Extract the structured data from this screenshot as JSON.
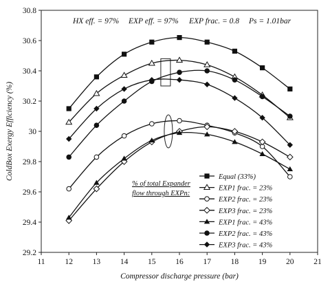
{
  "chart_data": {
    "type": "line",
    "params_text": [
      "HX eff. = 97%",
      "EXP eff. = 97%",
      "EXP frac. = 0.8",
      "Ps = 1.01bar"
    ],
    "xlabel": "Compressor discharge pressure (bar)",
    "ylabel": "ColdBox Exergy Efficiency (%)",
    "xlim": [
      11,
      21
    ],
    "ylim": [
      29.2,
      30.8
    ],
    "x_ticks": [
      "11",
      "12",
      "13",
      "14",
      "15",
      "16",
      "17",
      "18",
      "19",
      "20",
      "21"
    ],
    "y_ticks": [
      "29.2",
      "29.4",
      "29.6",
      "29.8",
      "30",
      "30.2",
      "30.4",
      "30.6",
      "30.8"
    ],
    "grid": false,
    "legend_position": "bottom-right",
    "note": [
      "% of total Expander",
      "flow through EXPn:"
    ],
    "x": [
      12,
      13,
      14,
      15,
      16,
      17,
      18,
      19,
      20
    ],
    "series": [
      {
        "name": "Equal (33%)",
        "marker": "square",
        "values": [
          30.15,
          30.36,
          30.51,
          30.59,
          30.62,
          30.59,
          30.53,
          30.42,
          30.28
        ]
      },
      {
        "name": "EXP1 frac. = 23%",
        "marker": "triangle-open",
        "values": [
          30.06,
          30.25,
          30.37,
          30.45,
          30.47,
          30.44,
          30.36,
          30.24,
          30.09
        ]
      },
      {
        "name": "EXP2 frac. = 23%",
        "marker": "circle-open",
        "values": [
          29.62,
          29.83,
          29.97,
          30.05,
          30.07,
          30.04,
          29.99,
          29.9,
          29.7
        ]
      },
      {
        "name": "EXP3 frac. = 23%",
        "marker": "diamond-open",
        "values": [
          29.41,
          29.62,
          29.8,
          29.93,
          30.0,
          30.03,
          30.0,
          29.93,
          29.83
        ]
      },
      {
        "name": "EXP1 frac. = 43%",
        "marker": "triangle",
        "values": [
          29.43,
          29.66,
          29.82,
          29.94,
          29.99,
          29.98,
          29.93,
          29.85,
          29.75
        ]
      },
      {
        "name": "EXP2 frac. = 43%",
        "marker": "circle",
        "values": [
          29.83,
          30.04,
          30.2,
          30.33,
          30.39,
          30.4,
          30.34,
          30.23,
          30.1
        ]
      },
      {
        "name": "EXP3 frac. = 43%",
        "marker": "diamond",
        "values": [
          29.95,
          30.15,
          30.28,
          30.34,
          30.34,
          30.31,
          30.22,
          30.09,
          29.91
        ]
      }
    ]
  }
}
